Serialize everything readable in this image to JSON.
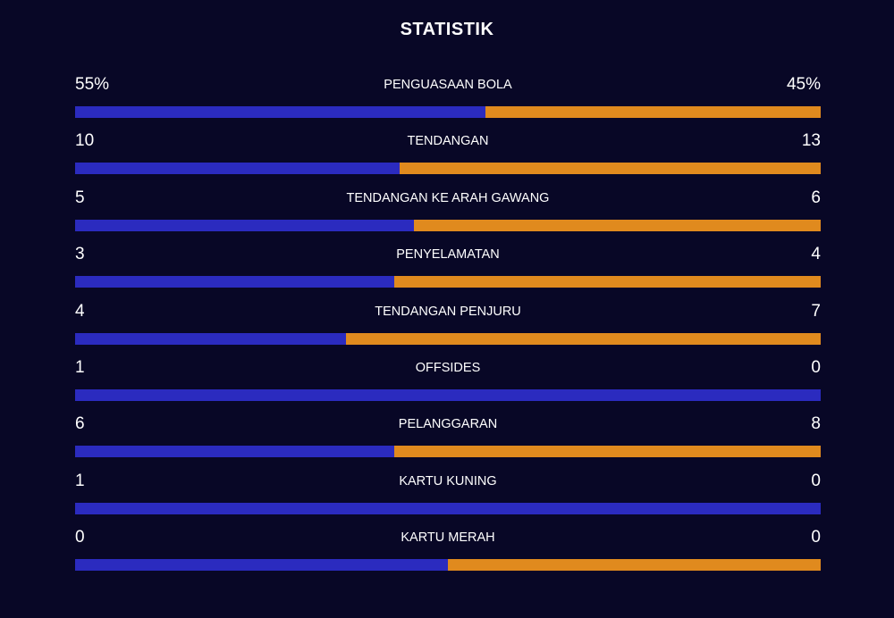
{
  "title": "STATISTIK",
  "colors": {
    "background": "#080726",
    "home": "#2b2bbf",
    "away": "#e08a1e"
  },
  "stats": [
    {
      "label": "PENGUASAAN BOLA",
      "home": "55%",
      "away": "45%",
      "home_share": 0.55
    },
    {
      "label": "TENDANGAN",
      "home": "10",
      "away": "13",
      "home_share": 0.4348
    },
    {
      "label": "TENDANGAN KE ARAH GAWANG",
      "home": "5",
      "away": "6",
      "home_share": 0.4545
    },
    {
      "label": "PENYELAMATAN",
      "home": "3",
      "away": "4",
      "home_share": 0.4286
    },
    {
      "label": "TENDANGAN PENJURU",
      "home": "4",
      "away": "7",
      "home_share": 0.3636
    },
    {
      "label": "OFFSIDES",
      "home": "1",
      "away": "0",
      "home_share": 1.0
    },
    {
      "label": "PELANGGARAN",
      "home": "6",
      "away": "8",
      "home_share": 0.4286
    },
    {
      "label": "KARTU KUNING",
      "home": "1",
      "away": "0",
      "home_share": 1.0
    },
    {
      "label": "KARTU MERAH",
      "home": "0",
      "away": "0",
      "home_share": 0.5
    }
  ]
}
